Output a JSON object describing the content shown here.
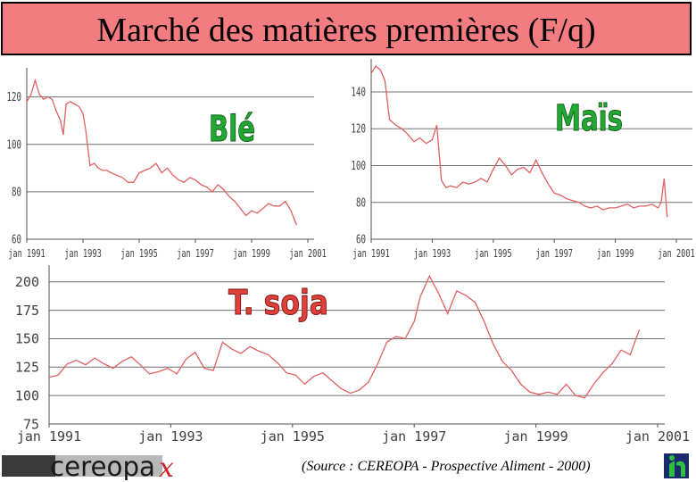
{
  "title": "Marché des matières premières (F/q)",
  "source": "(Source : CEREOPA - Prospective Aliment - 2000)",
  "logos": {
    "left_text": "cereopa",
    "left_icon": "cereopa-logo",
    "right_icon": "company-logo"
  },
  "colors": {
    "title_bg": "#f27c80",
    "line": "#e06060",
    "grid": "#606060",
    "label_green": "#22a832"
  },
  "chart_data": [
    {
      "type": "line",
      "name": "ble",
      "label": "Blé",
      "x_ticks": [
        "jan 1991",
        "jan 1993",
        "jan 1995",
        "jan 1997",
        "jan 1999",
        "jan 2001"
      ],
      "x_domain": [
        1991,
        2001
      ],
      "y_ticks": [
        "60",
        "80",
        "100",
        "120"
      ],
      "ylim": [
        60,
        130
      ],
      "grid": true,
      "x": [
        1991.0,
        1991.15,
        1991.3,
        1991.45,
        1991.6,
        1991.75,
        1991.9,
        1992.05,
        1992.2,
        1992.3,
        1992.4,
        1992.55,
        1992.7,
        1992.85,
        1993.0,
        1993.1,
        1993.25,
        1993.4,
        1993.55,
        1993.7,
        1993.85,
        1994.0,
        1994.2,
        1994.4,
        1994.6,
        1994.8,
        1995.0,
        1995.2,
        1995.4,
        1995.6,
        1995.8,
        1996.0,
        1996.2,
        1996.4,
        1996.6,
        1996.8,
        1997.0,
        1997.2,
        1997.4,
        1997.6,
        1997.8,
        1998.0,
        1998.2,
        1998.4,
        1998.6,
        1998.8,
        1999.0,
        1999.2,
        1999.4,
        1999.6,
        1999.8,
        2000.0,
        2000.2,
        2000.4,
        2000.6
      ],
      "y": [
        118,
        121,
        127,
        121,
        119,
        120,
        119,
        114,
        110,
        104,
        117,
        118,
        117,
        116,
        113,
        106,
        91,
        92,
        90,
        89,
        89,
        88,
        87,
        86,
        84,
        84,
        88,
        89,
        90,
        92,
        88,
        90,
        87,
        85,
        84,
        86,
        85,
        83,
        82,
        80,
        83,
        81,
        78,
        76,
        73,
        70,
        72,
        71,
        73,
        75,
        74,
        74,
        76,
        72,
        66
      ]
    },
    {
      "type": "line",
      "name": "mais",
      "label": "Maïs",
      "x_ticks": [
        "jan 1991",
        "jan 1993",
        "jan 1995",
        "jan 1997",
        "jan 1999",
        "jan 2001"
      ],
      "x_domain": [
        1991,
        2001
      ],
      "y_ticks": [
        "60",
        "80",
        "100",
        "120",
        "140"
      ],
      "ylim": [
        60,
        155
      ],
      "grid": true,
      "x": [
        1991.0,
        1991.15,
        1991.3,
        1991.45,
        1991.6,
        1991.8,
        1992.0,
        1992.2,
        1992.4,
        1992.6,
        1992.8,
        1993.0,
        1993.15,
        1993.3,
        1993.45,
        1993.6,
        1993.8,
        1994.0,
        1994.2,
        1994.4,
        1994.6,
        1994.8,
        1995.0,
        1995.2,
        1995.4,
        1995.6,
        1995.8,
        1996.0,
        1996.2,
        1996.4,
        1996.6,
        1996.8,
        1997.0,
        1997.2,
        1997.4,
        1997.6,
        1997.8,
        1998.0,
        1998.2,
        1998.4,
        1998.6,
        1998.8,
        1999.0,
        1999.2,
        1999.4,
        1999.6,
        1999.8,
        2000.0,
        2000.2,
        2000.4,
        2000.5,
        2000.6,
        2000.7
      ],
      "y": [
        150,
        154,
        152,
        146,
        125,
        122,
        120,
        117,
        113,
        115,
        112,
        114,
        122,
        92,
        88,
        89,
        88,
        91,
        90,
        91,
        93,
        91,
        98,
        104,
        100,
        95,
        98,
        99,
        96,
        103,
        96,
        90,
        85,
        84,
        82,
        81,
        80,
        78,
        77,
        78,
        76,
        77,
        77,
        78,
        79,
        77,
        78,
        78,
        79,
        77,
        80,
        93,
        72
      ]
    },
    {
      "type": "line",
      "name": "tourteau-soja",
      "label": "T. soja",
      "x_ticks": [
        "jan 1991",
        "jan 1993",
        "jan 1995",
        "jan 1997",
        "jan 1999",
        "jan 2001"
      ],
      "x_domain": [
        1991,
        2001
      ],
      "y_ticks": [
        "75",
        "100",
        "125",
        "150",
        "175",
        "200"
      ],
      "ylim": [
        75,
        210
      ],
      "grid": true,
      "x": [
        1991.0,
        1991.15,
        1991.3,
        1991.45,
        1991.6,
        1991.75,
        1991.9,
        1992.05,
        1992.2,
        1992.35,
        1992.5,
        1992.65,
        1992.8,
        1992.95,
        1993.1,
        1993.25,
        1993.4,
        1993.55,
        1993.7,
        1993.85,
        1994.0,
        1994.15,
        1994.3,
        1994.45,
        1994.6,
        1994.75,
        1994.9,
        1995.05,
        1995.2,
        1995.35,
        1995.5,
        1995.65,
        1995.8,
        1995.95,
        1996.1,
        1996.25,
        1996.4,
        1996.55,
        1996.7,
        1996.85,
        1997.0,
        1997.1,
        1997.25,
        1997.4,
        1997.55,
        1997.7,
        1997.85,
        1998.0,
        1998.15,
        1998.3,
        1998.45,
        1998.6,
        1998.75,
        1998.9,
        1999.05,
        1999.2,
        1999.35,
        1999.5,
        1999.65,
        1999.8,
        1999.95,
        2000.1,
        2000.25,
        2000.4,
        2000.55,
        2000.7
      ],
      "y": [
        116,
        118,
        128,
        131,
        127,
        133,
        128,
        124,
        130,
        134,
        127,
        119,
        121,
        124,
        119,
        132,
        138,
        124,
        122,
        147,
        141,
        137,
        143,
        139,
        136,
        129,
        120,
        118,
        110,
        117,
        120,
        113,
        106,
        102,
        105,
        112,
        128,
        147,
        152,
        150,
        165,
        187,
        205,
        190,
        172,
        192,
        188,
        182,
        165,
        145,
        130,
        122,
        110,
        103,
        101,
        103,
        101,
        110,
        100,
        98,
        110,
        120,
        128,
        140,
        136,
        158
      ]
    }
  ]
}
